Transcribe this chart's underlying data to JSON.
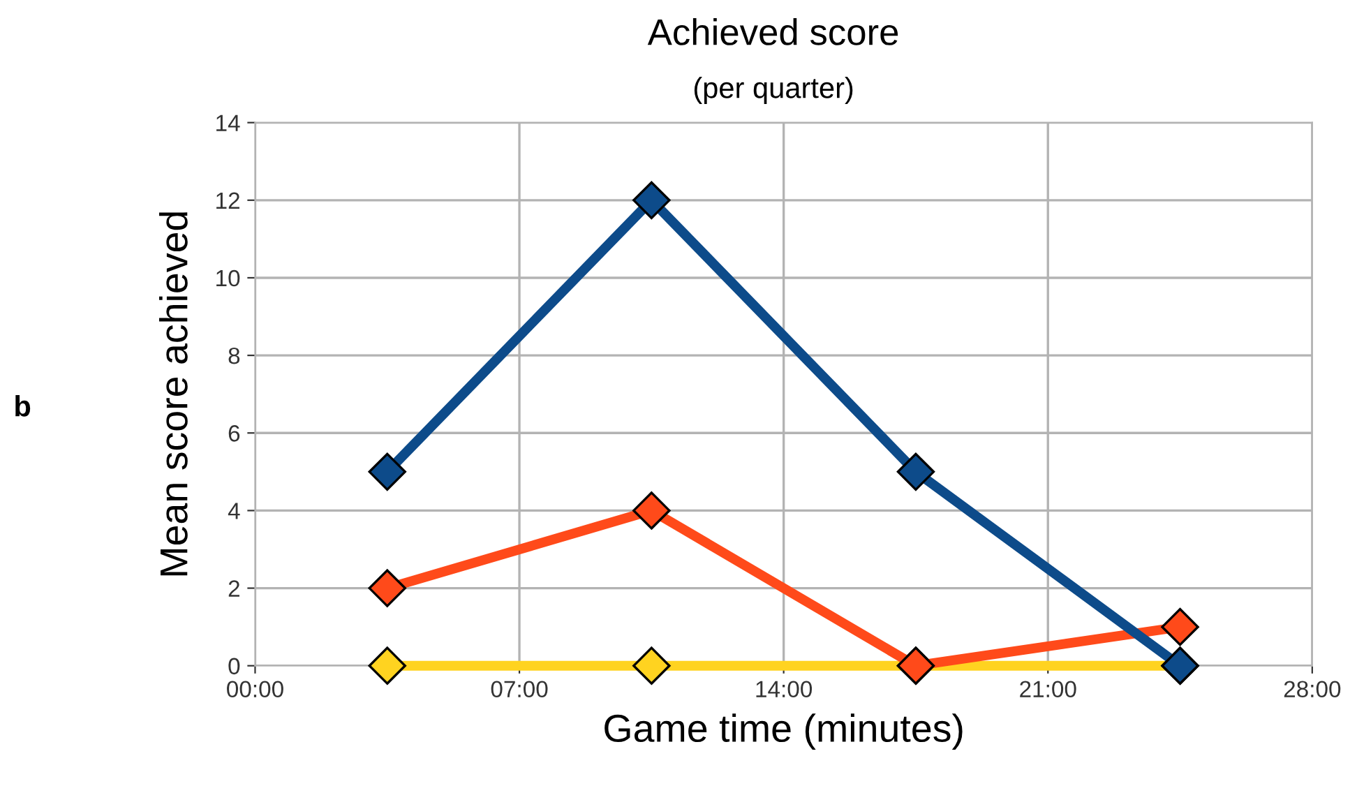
{
  "chart_data": {
    "type": "line",
    "title": "Achieved score",
    "subtitle": "(per quarter)",
    "xlabel": "Game time (minutes)",
    "ylabel": "Mean score achieved",
    "annotations": [
      "b"
    ],
    "x": [
      3.5,
      10.5,
      17.5,
      24.5
    ],
    "series": [
      {
        "color": "#ffd320",
        "values": [
          0,
          0,
          0,
          0
        ]
      },
      {
        "color": "#ff4a1a",
        "values": [
          2,
          4,
          0,
          1
        ]
      },
      {
        "color": "#0d4b8a",
        "values": [
          5,
          12,
          5,
          0
        ]
      }
    ],
    "xlim": [
      0,
      28
    ],
    "xticks": [
      {
        "value": 0,
        "label": "00:00"
      },
      {
        "value": 7,
        "label": "07:00"
      },
      {
        "value": 14,
        "label": "14:00"
      },
      {
        "value": 21,
        "label": "21:00"
      },
      {
        "value": 28,
        "label": "28:00"
      }
    ],
    "ylim": [
      0,
      14
    ],
    "yticks": [
      0,
      2,
      4,
      6,
      8,
      10,
      12,
      14
    ],
    "grid": true,
    "marker": "diamond",
    "line_style": "solid",
    "legend": false
  }
}
